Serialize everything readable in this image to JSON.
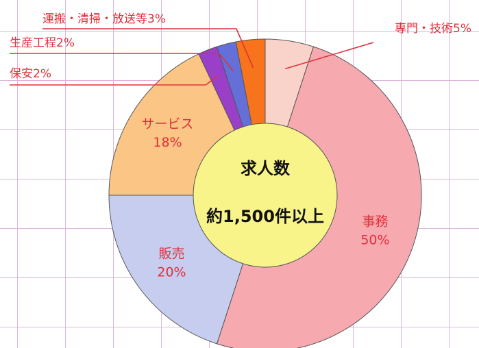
{
  "chart_data": {
    "type": "donut",
    "categories": [
      "専門・技術",
      "事務",
      "販売",
      "サービス",
      "保安",
      "生産工程",
      "運搬・清掃・放送等"
    ],
    "values": [
      5,
      50,
      20,
      18,
      2,
      2,
      3
    ],
    "value_labels": [
      "5%",
      "50%",
      "20%",
      "18%",
      "2%",
      "2%",
      "3%"
    ],
    "colors": [
      "#f9d2ca",
      "#f7a9b0",
      "#c7cdef",
      "#fbc685",
      "#9a3fc8",
      "#6470d8",
      "#f7741c"
    ],
    "center_text": [
      "求人数",
      "約1,500件以上"
    ]
  }
}
